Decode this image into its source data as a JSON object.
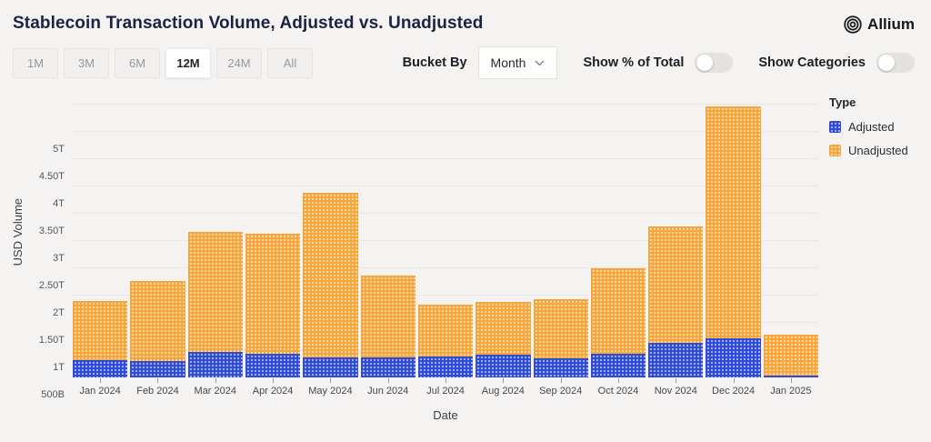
{
  "header": {
    "title": "Stablecoin Transaction Volume, Adjusted vs. Unadjusted",
    "brand": "Allium"
  },
  "toolbar": {
    "ranges": [
      {
        "label": "1M",
        "selected": false
      },
      {
        "label": "3M",
        "selected": false
      },
      {
        "label": "6M",
        "selected": false
      },
      {
        "label": "12M",
        "selected": true
      },
      {
        "label": "24M",
        "selected": false
      },
      {
        "label": "All",
        "selected": false
      }
    ],
    "bucket_by": {
      "label": "Bucket By",
      "value": "Month"
    },
    "toggles": [
      {
        "label": "Show % of Total",
        "on": false
      },
      {
        "label": "Show Categories",
        "on": false
      }
    ]
  },
  "chart_data": {
    "type": "bar",
    "stacked": true,
    "title": "Stablecoin Transaction Volume, Adjusted vs. Unadjusted",
    "xlabel": "Date",
    "ylabel": "USD Volume",
    "legend_title": "Type",
    "legend_position": "right",
    "grid": true,
    "units": "billions USD",
    "ylim_billions": [
      0,
      5200
    ],
    "categories": [
      "Jan 2024",
      "Feb 2024",
      "Mar 2024",
      "Apr 2024",
      "May 2024",
      "Jun 2024",
      "Jul 2024",
      "Aug 2024",
      "Sep 2024",
      "Oct 2024",
      "Nov 2024",
      "Dec 2024",
      "Jan 2025"
    ],
    "series": [
      {
        "name": "Adjusted",
        "color": "#2b48d9",
        "values_billions": [
          320,
          300,
          475,
          435,
          375,
          360,
          390,
          420,
          350,
          430,
          640,
          715,
          30
        ]
      },
      {
        "name": "Unadjusted",
        "color": "#f7a437",
        "values_billions": [
          1085,
          1460,
          2185,
          2200,
          3010,
          1510,
          950,
          970,
          1080,
          1575,
          2120,
          4245,
          750
        ]
      }
    ],
    "totals_billions": [
      1405,
      1760,
      2660,
      2635,
      3385,
      1870,
      1340,
      1390,
      1430,
      2005,
      2760,
      4960,
      780
    ],
    "y_ticks": [
      {
        "b": 5000,
        "label": "5T"
      },
      {
        "b": 4500,
        "label": "4.50T"
      },
      {
        "b": 4000,
        "label": "4T"
      },
      {
        "b": 3500,
        "label": "3.50T"
      },
      {
        "b": 3000,
        "label": "3T"
      },
      {
        "b": 2500,
        "label": "2.50T"
      },
      {
        "b": 2000,
        "label": "2T"
      },
      {
        "b": 1500,
        "label": "1.50T"
      },
      {
        "b": 1000,
        "label": "1T"
      },
      {
        "b": 500,
        "label": "500B"
      }
    ]
  }
}
